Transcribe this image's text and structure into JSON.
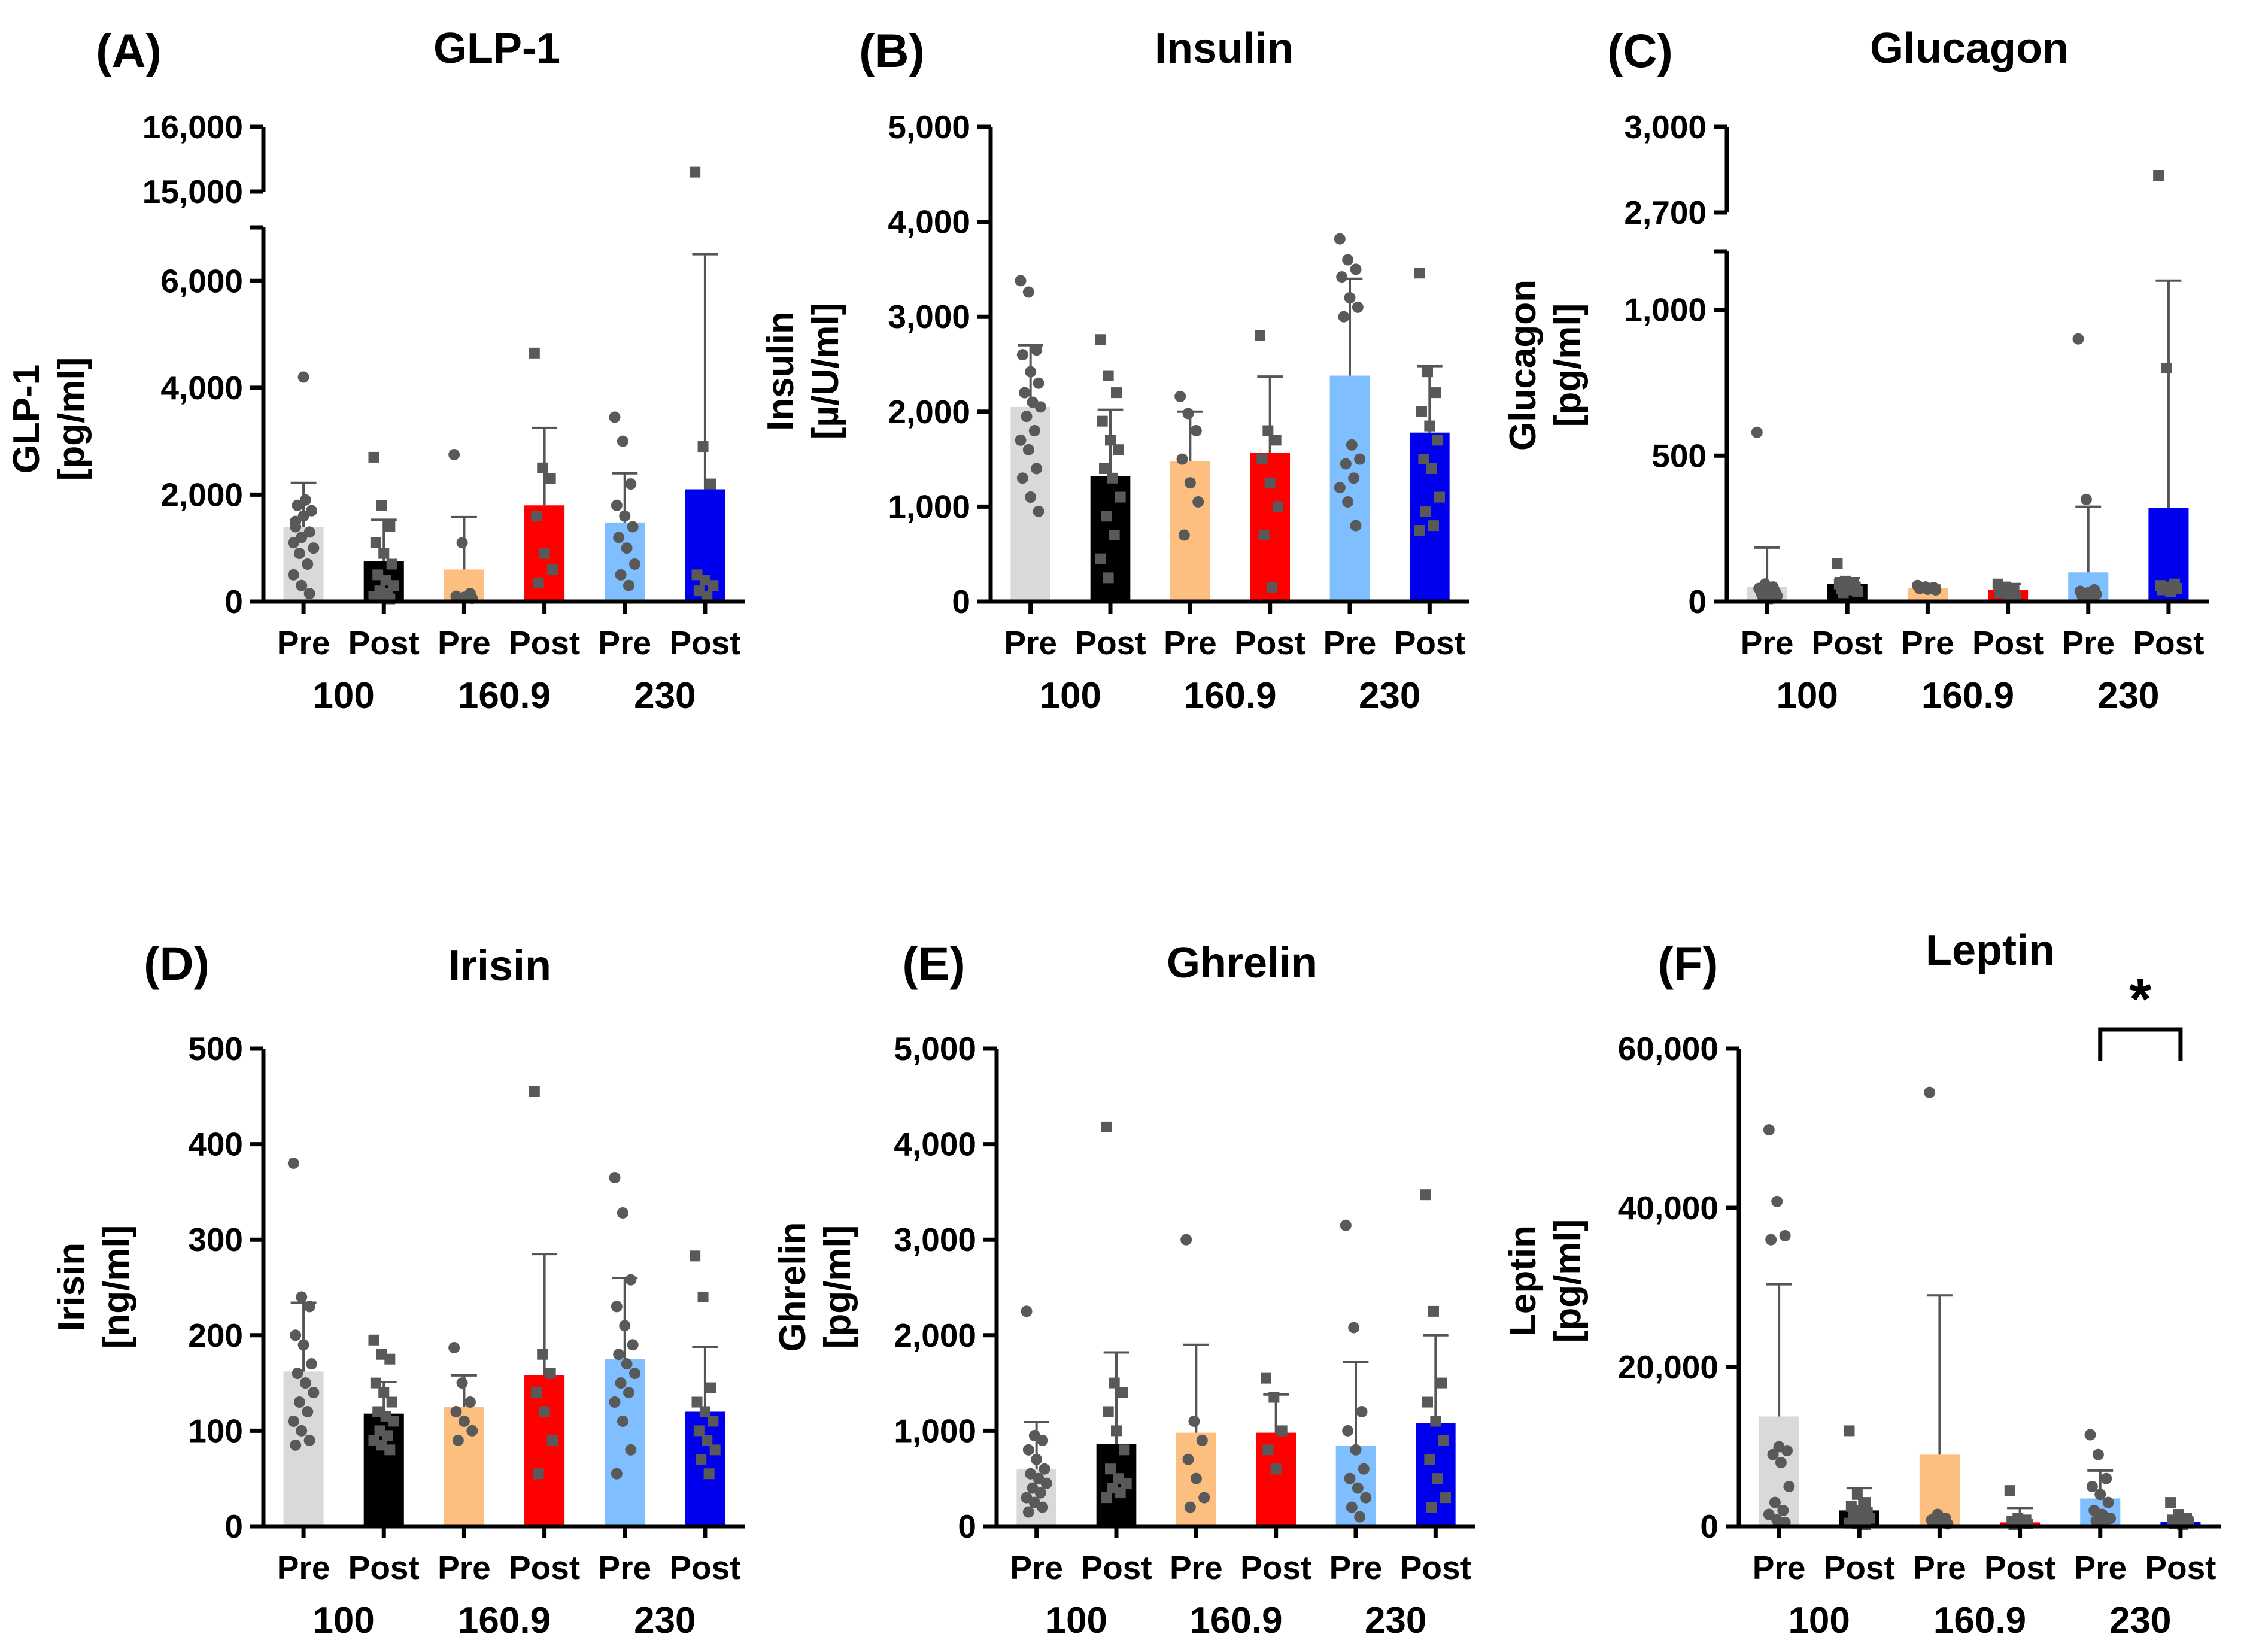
{
  "figure": "Six-panel bar chart figure of hormone levels pre and post intervention by group",
  "chart_data": [
    {
      "type": "bar",
      "letter": "(A)",
      "title": "GLP-1",
      "ylabel_lines": [
        "GLP-1",
        "[pg/ml]"
      ],
      "xlabel": "",
      "broken_axis": true,
      "ylim_lower": [
        0,
        7000
      ],
      "ylim_upper": [
        15000,
        16000
      ],
      "yticks_lower": [
        0,
        2000,
        4000,
        6000
      ],
      "ytick_labels_lower": [
        "0",
        "2,000",
        "4,000",
        "6,000"
      ],
      "yticks_upper": [
        15000,
        16000
      ],
      "ytick_labels_upper": [
        "15,000",
        "16,000"
      ],
      "categories": [
        "Pre",
        "Post",
        "Pre",
        "Post",
        "Pre",
        "Post"
      ],
      "groups": [
        "100",
        "160.9",
        "230"
      ],
      "series": [
        {
          "name": "GLP-1",
          "values": [
            1400,
            750,
            600,
            1800,
            1480,
            2100
          ],
          "error": [
            820,
            780,
            980,
            1450,
            920,
            4400
          ]
        }
      ],
      "bar_colors": [
        "#d9d9d9",
        "#000000",
        "#fdbf7f",
        "#ff0000",
        "#7fbfff",
        "#0000ee"
      ],
      "points": [
        [
          1100,
          1200,
          1300,
          1500,
          1600,
          1700,
          1800,
          1900,
          1000,
          900,
          700,
          500,
          300,
          150,
          1400,
          4200
        ],
        [
          2700,
          1800,
          1400,
          1100,
          900,
          700,
          500,
          400,
          300,
          200,
          150,
          100,
          80,
          50
        ],
        [
          2750,
          1100,
          150,
          100,
          80,
          60
        ],
        [
          4650,
          2500,
          2300,
          1600,
          900,
          600,
          350
        ],
        [
          3450,
          3000,
          2200,
          1800,
          1600,
          1400,
          1200,
          1000,
          700,
          500,
          300
        ],
        [
          15300,
          2900,
          2200,
          500,
          400,
          300,
          200,
          100
        ]
      ],
      "point_shapes": [
        "circle",
        "square",
        "circle",
        "square",
        "circle",
        "square"
      ]
    },
    {
      "type": "bar",
      "letter": "(B)",
      "title": "Insulin",
      "ylabel_lines": [
        "Insulin",
        "[µ/U/ml]"
      ],
      "xlabel": "",
      "broken_axis": false,
      "ylim": [
        0,
        5000
      ],
      "yticks": [
        0,
        1000,
        2000,
        3000,
        4000,
        5000
      ],
      "ytick_labels": [
        "0",
        "1,000",
        "2,000",
        "3,000",
        "4,000",
        "5,000"
      ],
      "categories": [
        "Pre",
        "Post",
        "Pre",
        "Post",
        "Pre",
        "Post"
      ],
      "groups": [
        "100",
        "160.9",
        "230"
      ],
      "series": [
        {
          "name": "Insulin",
          "values": [
            2050,
            1320,
            1480,
            1570,
            2380,
            1780
          ],
          "error": [
            650,
            700,
            520,
            800,
            1020,
            700
          ]
        }
      ],
      "bar_colors": [
        "#d9d9d9",
        "#000000",
        "#fdbf7f",
        "#ff0000",
        "#7fbfff",
        "#0000ee"
      ],
      "points": [
        [
          3380,
          3260,
          2650,
          2600,
          2420,
          2300,
          2200,
          2100,
          2050,
          1950,
          1800,
          1700,
          1600,
          1400,
          1300,
          1100,
          950
        ],
        [
          2760,
          2380,
          2200,
          1900,
          1700,
          1600,
          1400,
          1300,
          1100,
          900,
          700,
          450,
          250
        ],
        [
          2160,
          1980,
          1800,
          1500,
          1250,
          1050,
          700
        ],
        [
          2800,
          1800,
          1700,
          1500,
          1250,
          1000,
          700,
          150
        ],
        [
          3820,
          3600,
          3500,
          3420,
          3200,
          3100,
          3000,
          1650,
          1500,
          1450,
          1300,
          1200,
          1050,
          800
        ],
        [
          3460,
          2420,
          2200,
          2000,
          1850,
          1700,
          1500,
          1400,
          1100,
          950,
          800,
          750
        ]
      ],
      "point_shapes": [
        "circle",
        "square",
        "circle",
        "square",
        "circle",
        "square"
      ]
    },
    {
      "type": "bar",
      "letter": "(C)",
      "title": "Glucagon",
      "ylabel_lines": [
        "Glucagon",
        "[pg/ml]"
      ],
      "xlabel": "",
      "broken_axis": true,
      "ylim_lower": [
        0,
        1200
      ],
      "ylim_upper": [
        2700,
        3000
      ],
      "yticks_lower": [
        0,
        500,
        1000
      ],
      "ytick_labels_lower": [
        "0",
        "500",
        "1,000"
      ],
      "yticks_upper": [
        2700,
        3000
      ],
      "ytick_labels_upper": [
        "2,700",
        "3,000"
      ],
      "categories": [
        "Pre",
        "Post",
        "Pre",
        "Post",
        "Pre",
        "Post"
      ],
      "groups": [
        "100",
        "160.9",
        "230"
      ],
      "series": [
        {
          "name": "Glucagon",
          "values": [
            50,
            60,
            45,
            40,
            100,
            320
          ],
          "error": [
            135,
            20,
            10,
            20,
            225,
            780
          ]
        }
      ],
      "bar_colors": [
        "#d9d9d9",
        "#000000",
        "#fdbf7f",
        "#ff0000",
        "#7fbfff",
        "#0000ee"
      ],
      "points": [
        [
          580,
          60,
          50,
          45,
          40,
          35,
          30,
          25,
          20,
          15,
          10
        ],
        [
          130,
          70,
          65,
          60,
          55,
          50,
          45,
          40,
          35,
          30
        ],
        [
          55,
          50,
          48,
          45,
          42,
          40
        ],
        [
          60,
          50,
          40,
          30,
          20,
          15
        ],
        [
          900,
          350,
          40,
          35,
          30,
          25,
          20,
          15
        ],
        [
          2830,
          800,
          60,
          55,
          50,
          45,
          40,
          35
        ]
      ],
      "point_shapes": [
        "circle",
        "square",
        "circle",
        "square",
        "circle",
        "square"
      ]
    },
    {
      "type": "bar",
      "letter": "(D)",
      "title": "Irisin",
      "ylabel_lines": [
        "Irisin",
        "[ng/ml]"
      ],
      "xlabel": "",
      "broken_axis": false,
      "ylim": [
        0,
        500
      ],
      "yticks": [
        0,
        100,
        200,
        300,
        400,
        500
      ],
      "ytick_labels": [
        "0",
        "100",
        "200",
        "300",
        "400",
        "500"
      ],
      "categories": [
        "Pre",
        "Post",
        "Pre",
        "Post",
        "Pre",
        "Post"
      ],
      "groups": [
        "100",
        "160.9",
        "230"
      ],
      "series": [
        {
          "name": "Irisin",
          "values": [
            162,
            118,
            125,
            158,
            175,
            120
          ],
          "error": [
            72,
            33,
            33,
            127,
            85,
            68
          ]
        }
      ],
      "bar_colors": [
        "#d9d9d9",
        "#000000",
        "#fdbf7f",
        "#ff0000",
        "#7fbfff",
        "#0000ee"
      ],
      "points": [
        [
          380,
          240,
          230,
          200,
          190,
          170,
          160,
          150,
          140,
          130,
          120,
          110,
          100,
          90,
          85
        ],
        [
          195,
          180,
          175,
          150,
          140,
          130,
          120,
          115,
          110,
          100,
          95,
          90,
          85,
          80
        ],
        [
          187,
          150,
          130,
          120,
          110,
          100,
          90
        ],
        [
          455,
          180,
          160,
          140,
          120,
          90,
          55
        ],
        [
          365,
          328,
          258,
          230,
          210,
          190,
          180,
          170,
          160,
          150,
          140,
          130,
          110,
          80,
          55
        ],
        [
          283,
          240,
          145,
          130,
          120,
          110,
          100,
          90,
          80,
          70,
          55
        ]
      ],
      "point_shapes": [
        "circle",
        "square",
        "circle",
        "square",
        "circle",
        "square"
      ]
    },
    {
      "type": "bar",
      "letter": "(E)",
      "title": "Ghrelin",
      "ylabel_lines": [
        "Ghrelin",
        "[pg/ml]"
      ],
      "xlabel": "",
      "broken_axis": false,
      "ylim": [
        0,
        5000
      ],
      "yticks": [
        0,
        1000,
        2000,
        3000,
        4000,
        5000
      ],
      "ytick_labels": [
        "0",
        "1,000",
        "2,000",
        "3,000",
        "4,000",
        "5,000"
      ],
      "categories": [
        "Pre",
        "Post",
        "Pre",
        "Post",
        "Pre",
        "Post"
      ],
      "groups": [
        "100",
        "160.9",
        "230"
      ],
      "series": [
        {
          "name": "Ghrelin",
          "values": [
            600,
            860,
            980,
            980,
            840,
            1080
          ],
          "error": [
            490,
            960,
            920,
            400,
            880,
            920
          ]
        }
      ],
      "bar_colors": [
        "#d9d9d9",
        "#000000",
        "#fdbf7f",
        "#ff0000",
        "#7fbfff",
        "#0000ee"
      ],
      "points": [
        [
          2250,
          950,
          900,
          800,
          700,
          600,
          550,
          500,
          450,
          400,
          350,
          300,
          250,
          200,
          150
        ],
        [
          4180,
          1500,
          1400,
          1200,
          1000,
          800,
          600,
          500,
          450,
          400,
          350,
          300
        ],
        [
          3000,
          1100,
          900,
          700,
          500,
          300,
          200
        ],
        [
          1550,
          1350,
          1000,
          800,
          600
        ],
        [
          3150,
          2080,
          1200,
          1000,
          800,
          600,
          500,
          400,
          300,
          200,
          100
        ],
        [
          3470,
          2250,
          1500,
          1300,
          1100,
          900,
          700,
          500,
          300,
          200
        ]
      ],
      "point_shapes": [
        "circle",
        "square",
        "circle",
        "square",
        "circle",
        "square"
      ]
    },
    {
      "type": "bar",
      "letter": "(F)",
      "title": "Leptin",
      "ylabel_lines": [
        "Leptin",
        "[pg/ml]"
      ],
      "xlabel": "",
      "broken_axis": false,
      "ylim": [
        0,
        60000
      ],
      "yticks": [
        0,
        20000,
        40000,
        60000
      ],
      "ytick_labels": [
        "0",
        "20,000",
        "40,000",
        "60,000"
      ],
      "categories": [
        "Pre",
        "Post",
        "Pre",
        "Post",
        "Pre",
        "Post"
      ],
      "groups": [
        "100",
        "160.9",
        "230"
      ],
      "series": [
        {
          "name": "Leptin",
          "values": [
            13800,
            2000,
            9000,
            500,
            3500,
            600
          ],
          "error": [
            16600,
            2800,
            20000,
            1800,
            3500,
            600
          ]
        }
      ],
      "bar_colors": [
        "#d9d9d9",
        "#000000",
        "#fdbf7f",
        "#ff0000",
        "#7fbfff",
        "#0000ee"
      ],
      "points": [
        [
          49800,
          40800,
          36500,
          36000,
          10000,
          9500,
          9000,
          8000,
          5000,
          3000,
          2000,
          1500,
          800,
          500
        ],
        [
          12000,
          4000,
          3000,
          2500,
          2000,
          1800,
          1500,
          1200,
          1000,
          800,
          600,
          400,
          300,
          200
        ],
        [
          54500,
          1500,
          1000,
          800,
          500,
          300
        ],
        [
          4500,
          1000,
          800,
          600,
          400,
          300,
          200
        ],
        [
          11500,
          9000,
          6000,
          5000,
          4000,
          3000,
          2000,
          1500,
          1000,
          700,
          500
        ],
        [
          3000,
          1500,
          1000,
          800,
          600,
          400,
          300,
          200
        ]
      ],
      "point_shapes": [
        "circle",
        "square",
        "circle",
        "square",
        "circle",
        "square"
      ],
      "significance": {
        "between": [
          4,
          5
        ],
        "label": "*"
      }
    }
  ]
}
